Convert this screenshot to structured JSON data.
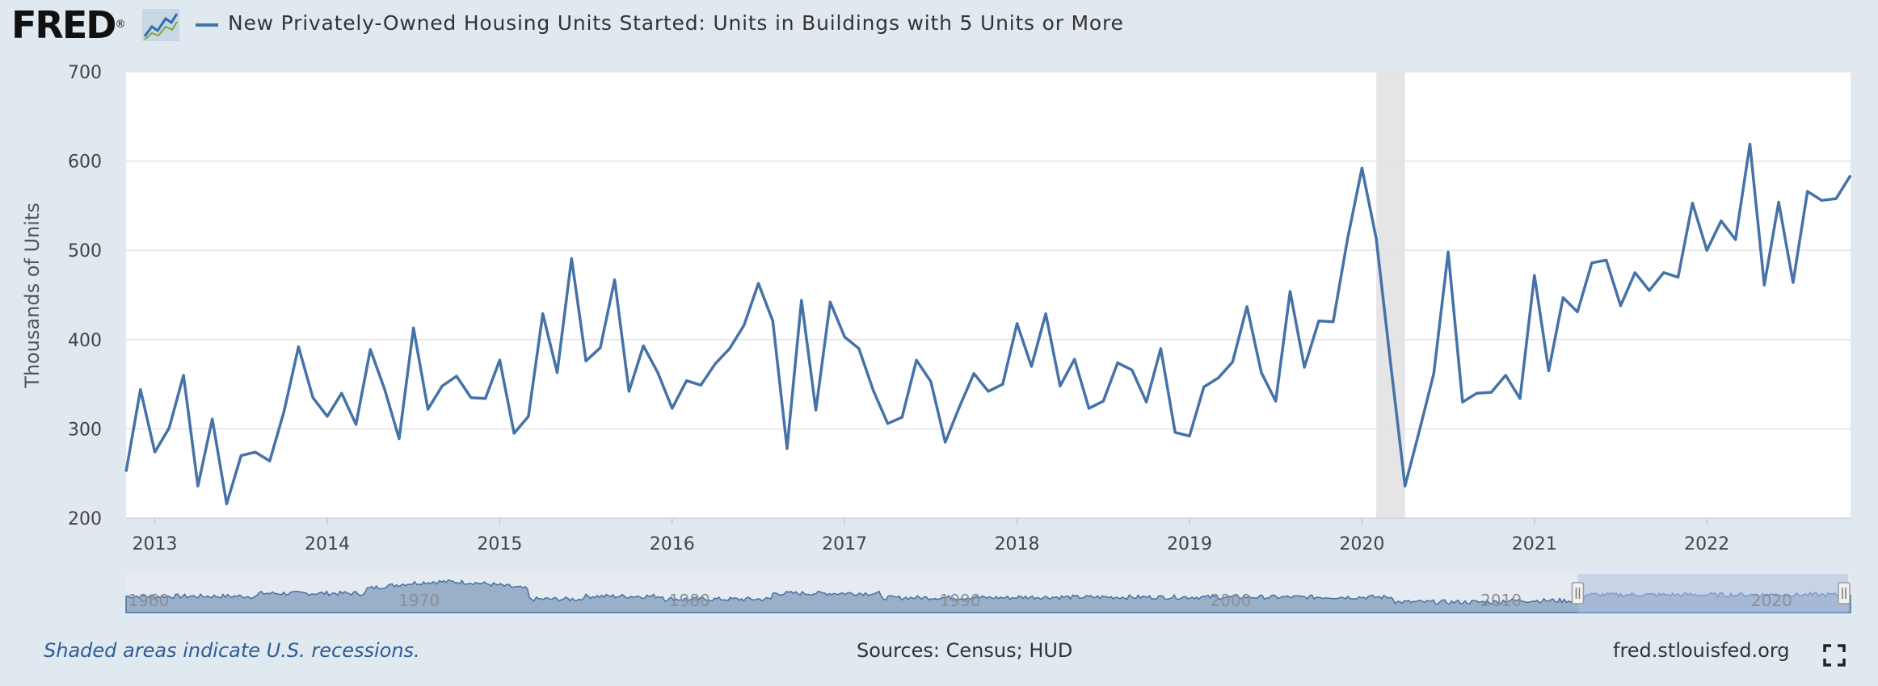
{
  "header": {
    "logo_text": "FRED",
    "logo_mark": "®",
    "title": "New Privately-Owned Housing Units Started: Units in Buildings with 5 Units or More"
  },
  "colors": {
    "series": "#4572a7",
    "recession": "#e5e5e5",
    "background": "#e1e9f0",
    "plot_background": "#ffffff",
    "navigator_fill": "#9aafc8",
    "navigator_selection": "#aebfe0"
  },
  "footer": {
    "recession_note": "Shaded areas indicate U.S. recessions.",
    "sources": "Sources: Census; HUD",
    "url": "fred.stlouisfed.org"
  },
  "icons": {
    "logo": "fred-graph-icon",
    "fullscreen": "fullscreen-icon"
  },
  "navigator": {
    "labels": [
      "1960",
      "1970",
      "1980",
      "1990",
      "2000",
      "2010",
      "2020"
    ],
    "selection_start": "2012-11",
    "selection_end": "2022-11"
  },
  "chart_data": {
    "type": "line",
    "title": "New Privately-Owned Housing Units Started: Units in Buildings with 5 Units or More",
    "ylabel": "Thousands of Units",
    "xlabel": "",
    "ylim": [
      200,
      700
    ],
    "yticks": [
      200,
      300,
      400,
      500,
      600,
      700
    ],
    "xticks": [
      "2013",
      "2014",
      "2015",
      "2016",
      "2017",
      "2018",
      "2019",
      "2020",
      "2021",
      "2022"
    ],
    "x_start": "2012-11",
    "x_end": "2022-11",
    "grid": true,
    "recessions": [
      {
        "start": "2020-02",
        "end": "2020-04"
      }
    ],
    "series": [
      {
        "name": "New Privately-Owned Housing Units Started: Units in Buildings with 5 Units or More",
        "frequency": "monthly",
        "start": "2012-11",
        "values": [
          252,
          344,
          274,
          301,
          360,
          236,
          311,
          216,
          270,
          274,
          264,
          320,
          392,
          335,
          314,
          340,
          305,
          389,
          344,
          289,
          413,
          322,
          348,
          359,
          335,
          334,
          377,
          295,
          314,
          429,
          363,
          491,
          376,
          391,
          467,
          342,
          393,
          363,
          323,
          354,
          349,
          373,
          390,
          416,
          463,
          421,
          278,
          444,
          321,
          442,
          403,
          390,
          343,
          306,
          313,
          377,
          353,
          285,
          325,
          362,
          342,
          350,
          418,
          370,
          429,
          348,
          378,
          323,
          331,
          374,
          366,
          330,
          390,
          296,
          292,
          347,
          357,
          375,
          437,
          363,
          331,
          454,
          369,
          421,
          420,
          513,
          592,
          513,
          373,
          236,
          298,
          362,
          498,
          330,
          340,
          341,
          360,
          334,
          472,
          365,
          447,
          431,
          486,
          489,
          438,
          475,
          455,
          475,
          470,
          553,
          500,
          533,
          512,
          619,
          461,
          554,
          464,
          566,
          556,
          558,
          584
        ]
      }
    ]
  }
}
